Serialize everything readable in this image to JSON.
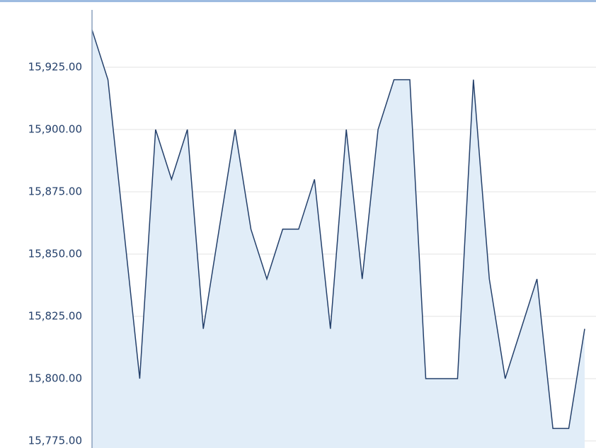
{
  "chart_data": {
    "type": "area",
    "values": [
      15940,
      15920,
      15860,
      15800,
      15900,
      15880,
      15900,
      15820,
      15860,
      15900,
      15860,
      15840,
      15860,
      15860,
      15880,
      15820,
      15900,
      15840,
      15900,
      15920,
      15920,
      15800,
      15800,
      15800,
      15920,
      15840,
      15800,
      15820,
      15840,
      15780,
      15780,
      15820
    ],
    "color": "#24406b",
    "fill": "#e1edf8",
    "ylim": [
      15775,
      15948
    ],
    "yticks": [
      {
        "value": 15775,
        "label": "15,775.00"
      },
      {
        "value": 15800,
        "label": "15,800.00"
      },
      {
        "value": 15825,
        "label": "15,825.00"
      },
      {
        "value": 15850,
        "label": "15,850.00"
      },
      {
        "value": 15875,
        "label": "15,875.00"
      },
      {
        "value": 15900,
        "label": "15,900.00"
      },
      {
        "value": 15925,
        "label": "15,925.00"
      }
    ],
    "grid": true
  }
}
